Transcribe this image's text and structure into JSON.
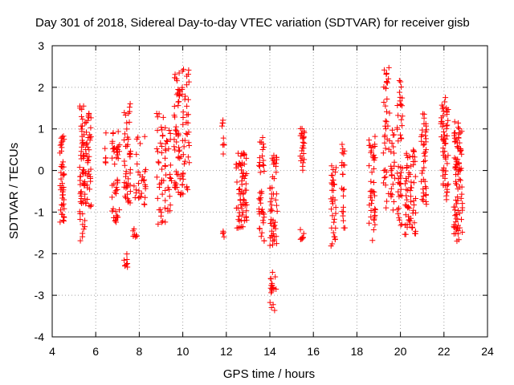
{
  "chart_data": {
    "type": "scatter",
    "title": "Day 301 of 2018, Sidereal Day-to-day VTEC variation (SDTVAR) for receiver gisb",
    "xlabel": "GPS time / hours",
    "ylabel": "SDTVAR / TECUs",
    "xlim": [
      4,
      24
    ],
    "ylim": [
      -4,
      3
    ],
    "xticks": [
      4,
      6,
      8,
      10,
      12,
      14,
      16,
      18,
      20,
      22,
      24
    ],
    "xtick_labels": [
      "4",
      "6",
      "8",
      "10",
      "12",
      "14",
      "16",
      "18",
      "20",
      "22",
      "24"
    ],
    "yticks": [
      -4,
      -3,
      -2,
      -1,
      0,
      1,
      2,
      3
    ],
    "ytick_labels": [
      "-4",
      "-3",
      "-2",
      "-1",
      "0",
      "1",
      "2",
      "3"
    ],
    "grid": true,
    "marker": "+",
    "marker_color": "#ff0000",
    "series": [
      {
        "name": "SDTVAR",
        "clusters": [
          {
            "x0": 4.35,
            "x1": 4.55,
            "ymin": -1.25,
            "ymax": 0.85,
            "n": 45
          },
          {
            "x0": 5.25,
            "x1": 5.5,
            "ymin": -1.7,
            "ymax": 1.55,
            "n": 60
          },
          {
            "x0": 5.5,
            "x1": 5.8,
            "ymin": -0.9,
            "ymax": 1.45,
            "n": 45
          },
          {
            "x0": 6.4,
            "x1": 6.5,
            "ymin": 0.1,
            "ymax": 1.0,
            "n": 6
          },
          {
            "x0": 6.75,
            "x1": 7.1,
            "ymin": -1.25,
            "ymax": 1.0,
            "n": 45
          },
          {
            "x0": 7.3,
            "x1": 7.6,
            "ymin": -0.85,
            "ymax": 1.7,
            "n": 45
          },
          {
            "x0": 7.3,
            "x1": 7.5,
            "ymin": -2.35,
            "ymax": -2.0,
            "n": 8
          },
          {
            "x0": 7.7,
            "x1": 7.95,
            "ymin": -1.6,
            "ymax": -1.4,
            "n": 7
          },
          {
            "x0": 7.75,
            "x1": 8.3,
            "ymin": -1.0,
            "ymax": 1.0,
            "n": 30
          },
          {
            "x0": 8.8,
            "x1": 9.2,
            "ymin": -1.3,
            "ymax": 1.4,
            "n": 40
          },
          {
            "x0": 9.2,
            "x1": 9.5,
            "ymin": -1.0,
            "ymax": 1.0,
            "n": 22
          },
          {
            "x0": 9.6,
            "x1": 10.3,
            "ymin": -0.6,
            "ymax": 2.5,
            "n": 95
          },
          {
            "x0": 11.8,
            "x1": 11.9,
            "ymin": 0.3,
            "ymax": 1.25,
            "n": 9
          },
          {
            "x0": 11.8,
            "x1": 11.9,
            "ymin": -1.6,
            "ymax": -1.4,
            "n": 4
          },
          {
            "x0": 12.45,
            "x1": 12.95,
            "ymin": -1.4,
            "ymax": 0.45,
            "n": 70
          },
          {
            "x0": 13.5,
            "x1": 13.75,
            "ymin": -1.7,
            "ymax": 0.9,
            "n": 40
          },
          {
            "x0": 14.0,
            "x1": 14.35,
            "ymin": -1.9,
            "ymax": 0.4,
            "n": 50
          },
          {
            "x0": 14.0,
            "x1": 14.3,
            "ymin": -3.4,
            "ymax": -2.3,
            "n": 18
          },
          {
            "x0": 15.4,
            "x1": 15.6,
            "ymin": 0.0,
            "ymax": 1.15,
            "n": 25
          },
          {
            "x0": 15.4,
            "x1": 15.6,
            "ymin": -1.85,
            "ymax": -1.4,
            "n": 8
          },
          {
            "x0": 16.8,
            "x1": 17.05,
            "ymin": -1.85,
            "ymax": 0.15,
            "n": 35
          },
          {
            "x0": 17.3,
            "x1": 17.45,
            "ymin": -1.45,
            "ymax": 0.65,
            "n": 22
          },
          {
            "x0": 18.55,
            "x1": 18.85,
            "ymin": -1.7,
            "ymax": 0.85,
            "n": 45
          },
          {
            "x0": 19.2,
            "x1": 19.5,
            "ymin": -1.0,
            "ymax": 2.65,
            "n": 40
          },
          {
            "x0": 19.55,
            "x1": 19.75,
            "ymin": -1.15,
            "ymax": 1.05,
            "n": 22
          },
          {
            "x0": 19.85,
            "x1": 20.1,
            "ymin": -1.35,
            "ymax": 2.3,
            "n": 45
          },
          {
            "x0": 20.2,
            "x1": 20.7,
            "ymin": -1.55,
            "ymax": 0.5,
            "n": 65
          },
          {
            "x0": 20.95,
            "x1": 21.2,
            "ymin": -0.85,
            "ymax": 1.4,
            "n": 40
          },
          {
            "x0": 21.85,
            "x1": 22.2,
            "ymin": -0.7,
            "ymax": 1.85,
            "n": 60
          },
          {
            "x0": 22.45,
            "x1": 22.85,
            "ymin": -1.7,
            "ymax": 1.2,
            "n": 90
          }
        ]
      }
    ]
  }
}
